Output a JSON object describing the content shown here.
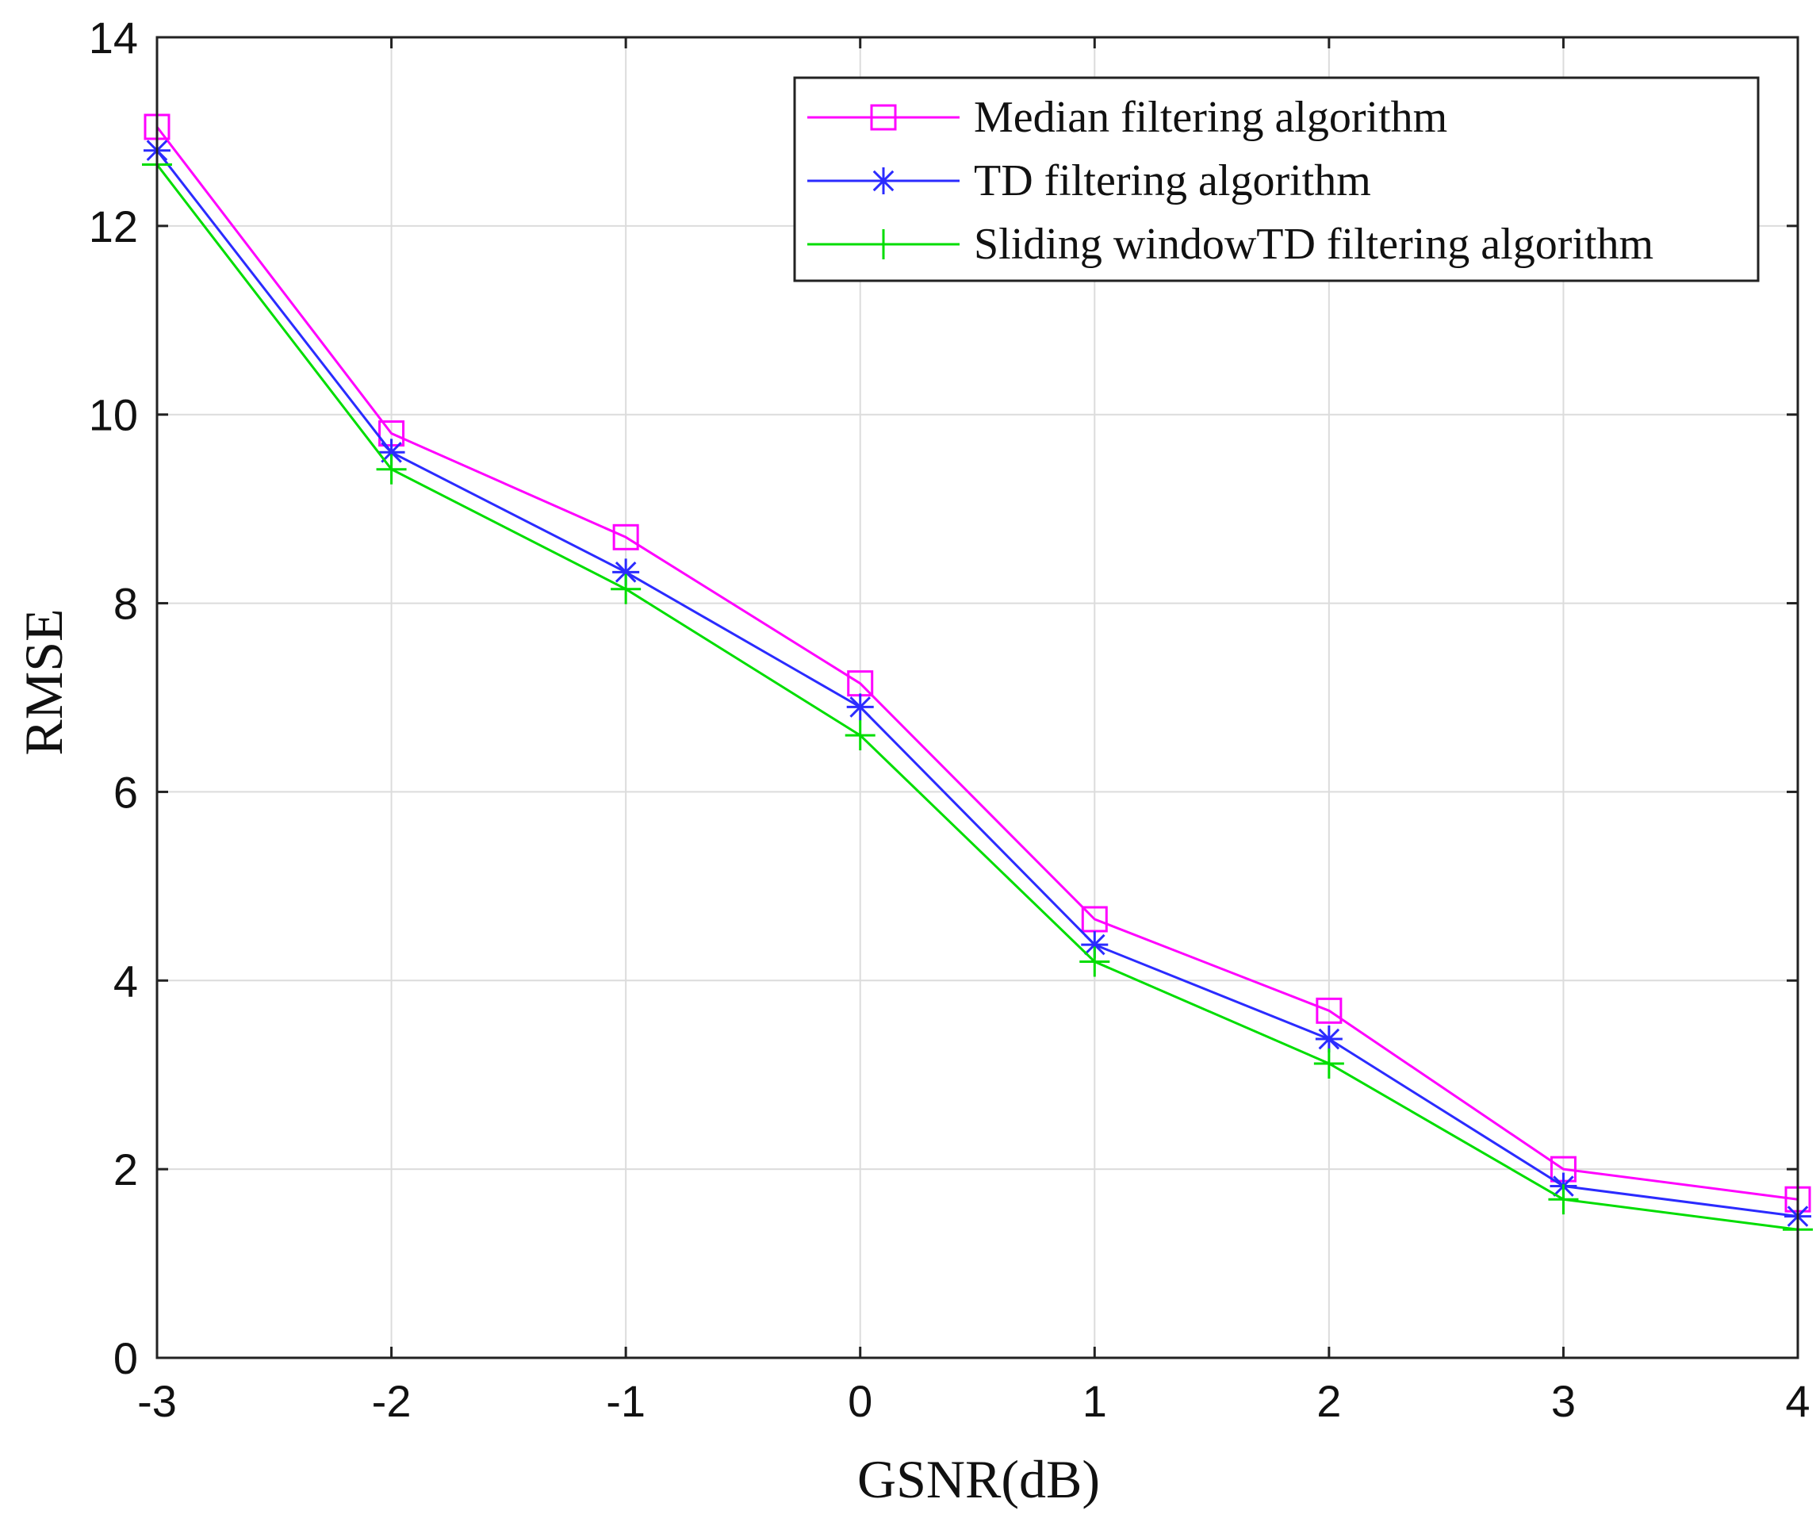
{
  "chart_data": {
    "type": "line",
    "title": "",
    "xlabel": "GSNR(dB)",
    "ylabel": "RMSE",
    "x": [
      -3,
      -2,
      -1,
      0,
      1,
      2,
      3,
      4
    ],
    "xticks": [
      "-3",
      "-2",
      "-1",
      "0",
      "1",
      "2",
      "3",
      "4"
    ],
    "yticks": [
      "0",
      "2",
      "4",
      "6",
      "8",
      "10",
      "12",
      "14"
    ],
    "xlim": [
      -3,
      4
    ],
    "ylim": [
      0,
      14
    ],
    "grid": true,
    "legend_position": "top-right",
    "series": [
      {
        "name": "Median filtering algorithm",
        "color": "#ff00ff",
        "marker": "square",
        "values": [
          13.05,
          9.8,
          8.7,
          7.15,
          4.65,
          3.68,
          2.0,
          1.68
        ]
      },
      {
        "name": "TD filtering algorithm",
        "color": "#2b2bff",
        "marker": "asterisk",
        "values": [
          12.8,
          9.6,
          8.33,
          6.9,
          4.38,
          3.38,
          1.82,
          1.5
        ]
      },
      {
        "name": "Sliding windowTD filtering algorithm",
        "color": "#00dd00",
        "marker": "plus",
        "values": [
          12.65,
          9.42,
          8.15,
          6.6,
          4.2,
          3.12,
          1.68,
          1.36
        ]
      }
    ]
  }
}
